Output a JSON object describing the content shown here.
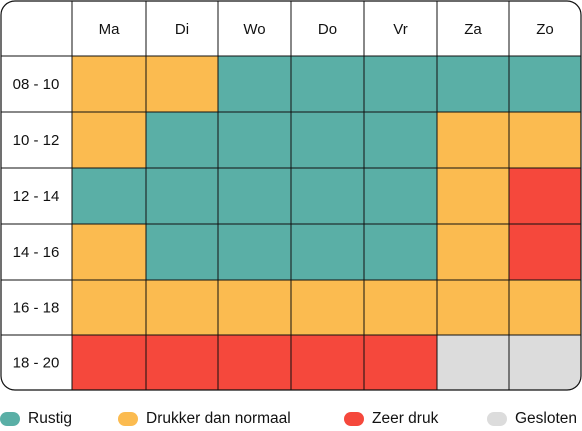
{
  "chart_data": {
    "type": "heatmap",
    "title": "",
    "columns": [
      "Ma",
      "Di",
      "Wo",
      "Do",
      "Vr",
      "Za",
      "Zo"
    ],
    "rows": [
      "08 - 10",
      "10 - 12",
      "12 - 14",
      "14 - 16",
      "16 - 18",
      "18 - 20"
    ],
    "categories": [
      {
        "key": "rustig",
        "label": "Rustig",
        "color": "#5aafa6"
      },
      {
        "key": "drukker",
        "label": "Drukker dan normaal",
        "color": "#fbbb50"
      },
      {
        "key": "zeer",
        "label": "Zeer druk",
        "color": "#f5483c"
      },
      {
        "key": "gesloten",
        "label": "Gesloten",
        "color": "#dcdcdc"
      }
    ],
    "values": [
      [
        "drukker",
        "drukker",
        "rustig",
        "rustig",
        "rustig",
        "rustig",
        "rustig"
      ],
      [
        "drukker",
        "rustig",
        "rustig",
        "rustig",
        "rustig",
        "drukker",
        "drukker"
      ],
      [
        "rustig",
        "rustig",
        "rustig",
        "rustig",
        "rustig",
        "drukker",
        "zeer"
      ],
      [
        "drukker",
        "rustig",
        "rustig",
        "rustig",
        "rustig",
        "drukker",
        "zeer"
      ],
      [
        "drukker",
        "drukker",
        "drukker",
        "drukker",
        "drukker",
        "drukker",
        "drukker"
      ],
      [
        "zeer",
        "zeer",
        "zeer",
        "zeer",
        "zeer",
        "gesloten",
        "gesloten"
      ]
    ],
    "legend_position": "bottom"
  }
}
